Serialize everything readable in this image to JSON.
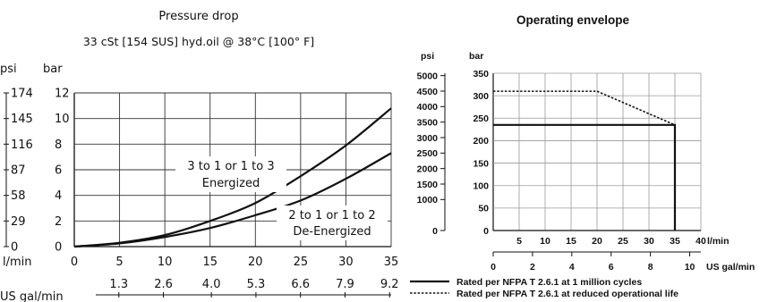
{
  "chart_data": [
    {
      "type": "line",
      "title": "Pressure drop",
      "subtitle": "33 cSt [154 SUS] hyd.oil @ 38°C [100° F]",
      "left_unit_label": "psi",
      "y_unit_label": "bar",
      "x_unit_label": "l/min",
      "x2_unit_label": "US gal/min",
      "x_ticks": [
        "0",
        "5",
        "10",
        "15",
        "20",
        "25",
        "30",
        "35"
      ],
      "y_ticks": [
        "0",
        "2",
        "4",
        "6",
        "8",
        "10",
        "12"
      ],
      "psi_ticks": [
        "0",
        "29",
        "58",
        "87",
        "116",
        "145",
        "174"
      ],
      "gal_ticks": [
        "1.3",
        "2.6",
        "4.0",
        "5.3",
        "6.6",
        "7.9",
        "9.2"
      ],
      "xlim": [
        0,
        35
      ],
      "ylim": [
        0,
        12
      ],
      "series": [
        {
          "name": "3 to 1 or 1 to 3 Energized",
          "label_lines": [
            "3 to 1 or 1 to 3",
            "Energized"
          ],
          "x": [
            0,
            5,
            10,
            15,
            20,
            25,
            30,
            35
          ],
          "y": [
            0,
            0.3,
            0.9,
            2.0,
            3.4,
            5.5,
            7.9,
            10.8
          ]
        },
        {
          "name": "2 to 1 or 1 to 2 De-Energized",
          "label_lines": [
            "2 to 1 or 1 to 2",
            "De-Energized"
          ],
          "x": [
            0,
            5,
            10,
            15,
            20,
            25,
            30,
            35
          ],
          "y": [
            0,
            0.25,
            0.75,
            1.45,
            2.45,
            3.6,
            5.3,
            7.3
          ]
        }
      ],
      "grid": true
    },
    {
      "type": "line",
      "title": "Operating envelope",
      "left_unit_label": "psi",
      "y_unit_label": "bar",
      "x_unit_label": "l/min",
      "x2_unit_label": "US gal/min",
      "x_ticks": [
        "5",
        "10",
        "15",
        "20",
        "25",
        "30",
        "35",
        "40"
      ],
      "y_ticks": [
        "0",
        "50",
        "100",
        "150",
        "200",
        "250",
        "300",
        "350"
      ],
      "psi_ticks": [
        "0",
        "1000",
        "1500",
        "2000",
        "2500",
        "3000",
        "3500",
        "4000",
        "4500",
        "5000"
      ],
      "gal_ticks": [
        "0",
        "2",
        "4",
        "6",
        "8",
        "10"
      ],
      "xlim": [
        0,
        40
      ],
      "ylim": [
        0,
        350
      ],
      "series": [
        {
          "name": "Rated per NFPA T 2.6.1 at 1 million cycles",
          "x": [
            0,
            35,
            35
          ],
          "y": [
            235,
            235,
            0
          ]
        },
        {
          "name": "Rated per NFPA T 2.6.1 at reduced operational life",
          "x": [
            0,
            20,
            35
          ],
          "y": [
            310,
            310,
            235
          ]
        }
      ],
      "legend_position": "bottom",
      "grid": true
    }
  ]
}
